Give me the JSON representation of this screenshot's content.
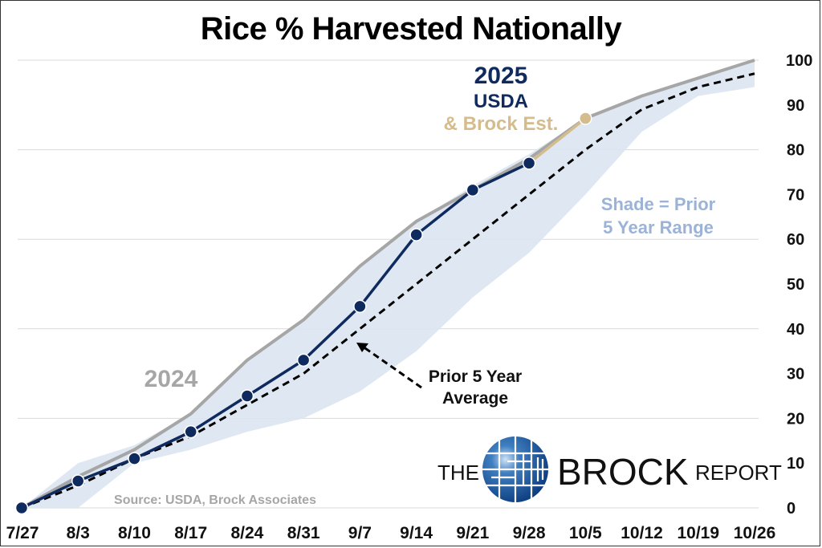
{
  "chart_data": {
    "type": "line",
    "title": "Rice % Harvested Nationally",
    "xlabel": "",
    "ylabel": "",
    "ylim": [
      0,
      100
    ],
    "yticks": [
      0,
      10,
      20,
      30,
      40,
      50,
      60,
      70,
      80,
      90,
      100
    ],
    "grid": true,
    "y_axis_side": "right",
    "categories": [
      "7/27",
      "8/3",
      "8/10",
      "8/17",
      "8/24",
      "8/31",
      "9/7",
      "9/14",
      "9/21",
      "9/28",
      "10/5",
      "10/12",
      "10/19",
      "10/26"
    ],
    "series": [
      {
        "name": "2024",
        "color": "#a6a6a6",
        "values": [
          0,
          7,
          13,
          21,
          33,
          42,
          54,
          64,
          71,
          78,
          87,
          92,
          96,
          100
        ]
      },
      {
        "name": "Prior 5 Year Average",
        "color": "#000000",
        "style": "dashed",
        "values": [
          0,
          5,
          11,
          16,
          23,
          30,
          40,
          50,
          60,
          70,
          80,
          89,
          94,
          97
        ]
      },
      {
        "name": "2025 USDA",
        "color": "#0f2a5e",
        "values": [
          0,
          6,
          11,
          17,
          25,
          33,
          45,
          61,
          71,
          77,
          null,
          null,
          null,
          null
        ]
      },
      {
        "name": "Brock Est.",
        "color": "#d4bc8c",
        "values": [
          null,
          null,
          null,
          null,
          null,
          null,
          null,
          null,
          null,
          77,
          87,
          null,
          null,
          null
        ]
      }
    ],
    "range_band": {
      "name": "Prior 5 Year Range",
      "color": "#dbe5f1",
      "upper": [
        0,
        10,
        14,
        21,
        33,
        42,
        54,
        64,
        72,
        79,
        87,
        92,
        96,
        100
      ],
      "lower": [
        0,
        0,
        10,
        13,
        17,
        20,
        26,
        35,
        47,
        57,
        70,
        84,
        92,
        94
      ]
    },
    "annotations": {
      "label_2024": "2024",
      "label_2025_year": "2025",
      "label_2025_usda": "USDA",
      "label_2025_est": "& Brock Est.",
      "avg_label_line1": "Prior 5 Year",
      "avg_label_line2": "Average",
      "shade_label_line1": "Shade = Prior",
      "shade_label_line2": "5 Year Range",
      "source": "Source: USDA, Brock Associates"
    },
    "logo": {
      "word_the": "THE",
      "word_brock": "BROCK",
      "word_report": "REPORT"
    }
  }
}
